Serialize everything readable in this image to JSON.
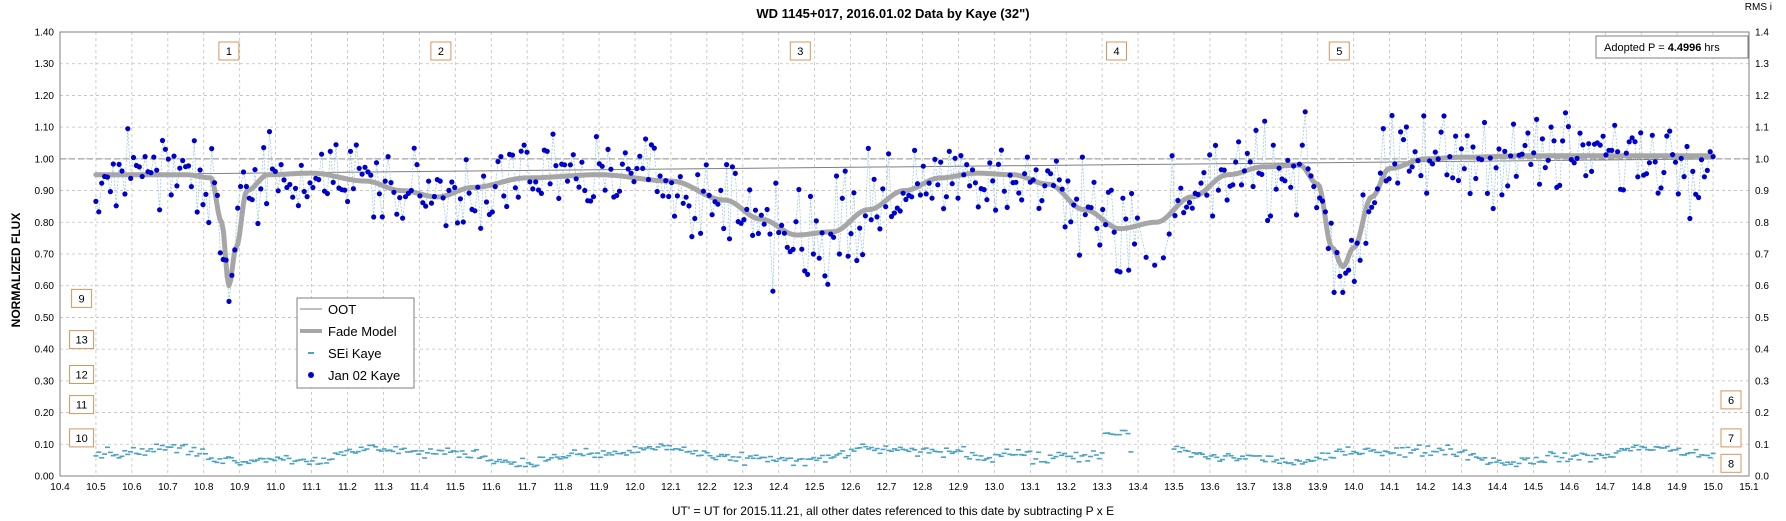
{
  "chart_data": {
    "type": "scatter",
    "title": "WD 1145+017, 2016.01.02 Data by Kaye (32\")",
    "xlabel": "UT' = UT for 2015.11.21, all other dates referenced to this date by subtracting P x E",
    "ylabel": "NORMALIZED FLUX",
    "right_axis_label": "RMS i",
    "xlim": [
      10.4,
      15.1
    ],
    "ylim": [
      0.0,
      1.4
    ],
    "x_ticks": [
      "10.4",
      "10.5",
      "10.6",
      "10.7",
      "10.8",
      "10.9",
      "11.0",
      "11.1",
      "11.2",
      "11.3",
      "11.4",
      "11.5",
      "11.6",
      "11.7",
      "11.8",
      "11.9",
      "12.0",
      "12.1",
      "12.2",
      "12.3",
      "12.4",
      "12.5",
      "12.6",
      "12.7",
      "12.8",
      "12.9",
      "13.0",
      "13.1",
      "13.2",
      "13.3",
      "13.4",
      "13.5",
      "13.6",
      "13.7",
      "13.8",
      "13.9",
      "14.0",
      "14.1",
      "14.2",
      "14.3",
      "14.4",
      "14.5",
      "14.6",
      "14.7",
      "14.8",
      "14.9",
      "15.0",
      "15.1"
    ],
    "y_ticks_left": [
      "0.00",
      "0.10",
      "0.20",
      "0.30",
      "0.40",
      "0.50",
      "0.60",
      "0.70",
      "0.80",
      "0.90",
      "1.00",
      "1.10",
      "1.20",
      "1.30",
      "1.40"
    ],
    "y_ticks_right": [
      "0.0",
      "0.1",
      "0.2",
      "0.3",
      "0.4",
      "0.5",
      "0.6",
      "0.7",
      "0.8",
      "0.9",
      "1.0",
      "1.1",
      "1.2",
      "1.3",
      "1.4"
    ],
    "grid": true,
    "legend_position": "lower-left",
    "adopted_period": {
      "prefix": "Adopted P = ",
      "value": "4.4996",
      "unit": " hrs"
    },
    "dip_labels": [
      {
        "text": "1",
        "x": 10.87,
        "y": 1.34
      },
      {
        "text": "2",
        "x": 11.46,
        "y": 1.34
      },
      {
        "text": "3",
        "x": 12.46,
        "y": 1.34
      },
      {
        "text": "4",
        "x": 13.34,
        "y": 1.34
      },
      {
        "text": "5",
        "x": 13.96,
        "y": 1.34
      }
    ],
    "side_labels": [
      {
        "text": "9",
        "x": 10.46,
        "y": 0.56
      },
      {
        "text": "13",
        "x": 10.46,
        "y": 0.43
      },
      {
        "text": "12",
        "x": 10.46,
        "y": 0.32
      },
      {
        "text": "11",
        "x": 10.46,
        "y": 0.225
      },
      {
        "text": "10",
        "x": 10.46,
        "y": 0.12
      },
      {
        "text": "6",
        "x": 15.05,
        "y": 0.24
      },
      {
        "text": "7",
        "x": 15.05,
        "y": 0.12
      },
      {
        "text": "8",
        "x": 15.05,
        "y": 0.04
      }
    ],
    "colors": {
      "observed": "#0000cc",
      "observed_line": "#9ecae1",
      "model": "#a6a6a6",
      "oot": "#7f7f7f",
      "rms": "#4ba3c3",
      "label_border": "#d9945a",
      "grid": "#bfbfbf"
    },
    "series": [
      {
        "name": "OOT",
        "style": "thin-line",
        "x": [
          10.5,
          15.0
        ],
        "y": [
          0.95,
          1.0
        ]
      },
      {
        "name": "Fade Model",
        "style": "thick-line",
        "x": [
          10.5,
          10.75,
          10.82,
          10.85,
          10.87,
          10.89,
          10.92,
          10.98,
          11.1,
          11.25,
          11.35,
          11.45,
          11.55,
          11.7,
          11.9,
          12.1,
          12.25,
          12.35,
          12.45,
          12.55,
          12.65,
          12.75,
          12.85,
          12.95,
          13.05,
          13.15,
          13.25,
          13.35,
          13.45,
          13.55,
          13.65,
          13.75,
          13.85,
          13.9,
          13.94,
          13.97,
          14.0,
          14.05,
          14.1,
          14.2,
          14.3,
          14.5,
          14.8,
          15.0
        ],
        "y": [
          0.95,
          0.95,
          0.94,
          0.8,
          0.6,
          0.72,
          0.9,
          0.95,
          0.955,
          0.93,
          0.9,
          0.88,
          0.91,
          0.94,
          0.95,
          0.93,
          0.87,
          0.81,
          0.76,
          0.77,
          0.84,
          0.9,
          0.94,
          0.955,
          0.95,
          0.92,
          0.84,
          0.78,
          0.8,
          0.88,
          0.95,
          0.975,
          0.98,
          0.92,
          0.72,
          0.66,
          0.72,
          0.88,
          0.97,
          1.0,
          1.005,
          1.01,
          1.01,
          1.01
        ]
      },
      {
        "name": "SEi Kaye",
        "style": "dash-markers",
        "segments": [
          {
            "x0": 10.5,
            "x1": 13.38,
            "n": 360,
            "base": 0.066
          },
          {
            "x0": 13.5,
            "x1": 15.0,
            "n": 190,
            "base": 0.066
          }
        ]
      },
      {
        "name": "Jan 02 Kaye",
        "style": "dots",
        "x_range": [
          10.5,
          15.0
        ],
        "n": 560,
        "model_ref": "Fade Model",
        "scatter": 0.065
      }
    ]
  }
}
